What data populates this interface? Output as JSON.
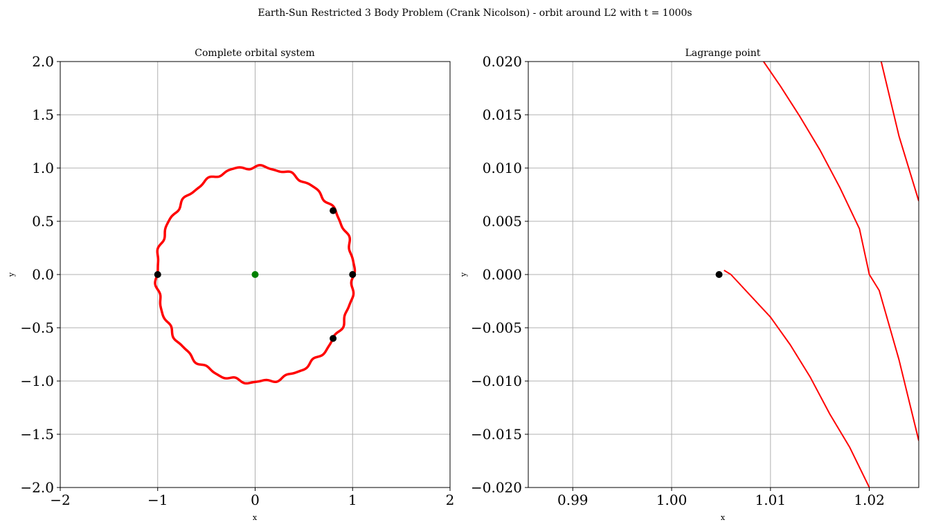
{
  "figure": {
    "title": "Earth-Sun Restricted 3 Body Problem (Crank Nicolson) - orbit around L2 with t = 1000s"
  },
  "chart_data": [
    {
      "type": "line",
      "title": "Complete orbital system",
      "xlabel": "x",
      "ylabel": "y",
      "xlim": [
        -2,
        2
      ],
      "ylim": [
        -2,
        2
      ],
      "grid": true,
      "xticks": [
        -2,
        -1,
        0,
        1,
        2
      ],
      "xtick_labels": [
        "−2",
        "−1",
        "0",
        "1",
        "2"
      ],
      "yticks": [
        -2.0,
        -1.5,
        -1.0,
        -0.5,
        0.0,
        0.5,
        1.0,
        1.5,
        2.0
      ],
      "ytick_labels": [
        "−2.0",
        "−1.5",
        "−1.0",
        "−0.5",
        "0.0",
        "0.5",
        "1.0",
        "1.5",
        "2.0"
      ],
      "orbit": {
        "color": "#ff0000",
        "mean_radius": 1.01,
        "wobble_amplitude": 0.015,
        "wobble_lobes": 22
      },
      "points": [
        {
          "x": 0.0,
          "y": 0.0,
          "color": "#008000"
        },
        {
          "x": -1.0,
          "y": 0.0,
          "color": "#000000"
        },
        {
          "x": 1.0,
          "y": 0.0,
          "color": "#000000"
        },
        {
          "x": 0.8,
          "y": 0.6,
          "color": "#000000"
        },
        {
          "x": 0.8,
          "y": -0.6,
          "color": "#000000"
        }
      ]
    },
    {
      "type": "line",
      "title": "Lagrange point",
      "xlabel": "x",
      "ylabel": "y",
      "xlim": [
        0.9855,
        1.025
      ],
      "ylim": [
        -0.02,
        0.02
      ],
      "grid": true,
      "xticks": [
        0.99,
        1.0,
        1.01,
        1.02
      ],
      "xtick_labels": [
        "0.99",
        "1.00",
        "1.01",
        "1.02"
      ],
      "yticks": [
        -0.02,
        -0.015,
        -0.01,
        -0.005,
        0.0,
        0.005,
        0.01,
        0.015,
        0.02
      ],
      "ytick_labels": [
        "−0.020",
        "−0.015",
        "−0.010",
        "−0.005",
        "0.000",
        "0.005",
        "0.010",
        "0.015",
        "0.020"
      ],
      "series": [
        {
          "color": "#ff0000",
          "x": [
            1.0053,
            1.006,
            1.008,
            1.01,
            1.012,
            1.014,
            1.016,
            1.018,
            1.02
          ],
          "y": [
            0.0004,
            0.0,
            -0.002,
            -0.004,
            -0.0066,
            -0.0096,
            -0.0131,
            -0.0162,
            -0.02
          ]
        },
        {
          "color": "#ff0000",
          "x": [
            1.0093,
            1.011,
            1.013,
            1.015,
            1.017,
            1.019,
            1.02,
            1.021,
            1.023,
            1.025
          ],
          "y": [
            0.02,
            0.0177,
            0.0148,
            0.0117,
            0.0082,
            0.0043,
            0.0,
            -0.0015,
            -0.008,
            -0.0156
          ]
        },
        {
          "color": "#ff0000",
          "x": [
            1.0212,
            1.023,
            1.025
          ],
          "y": [
            0.02,
            0.013,
            0.0069
          ]
        }
      ],
      "points": [
        {
          "x": 1.0048,
          "y": 0.0,
          "color": "#000000"
        }
      ]
    }
  ]
}
